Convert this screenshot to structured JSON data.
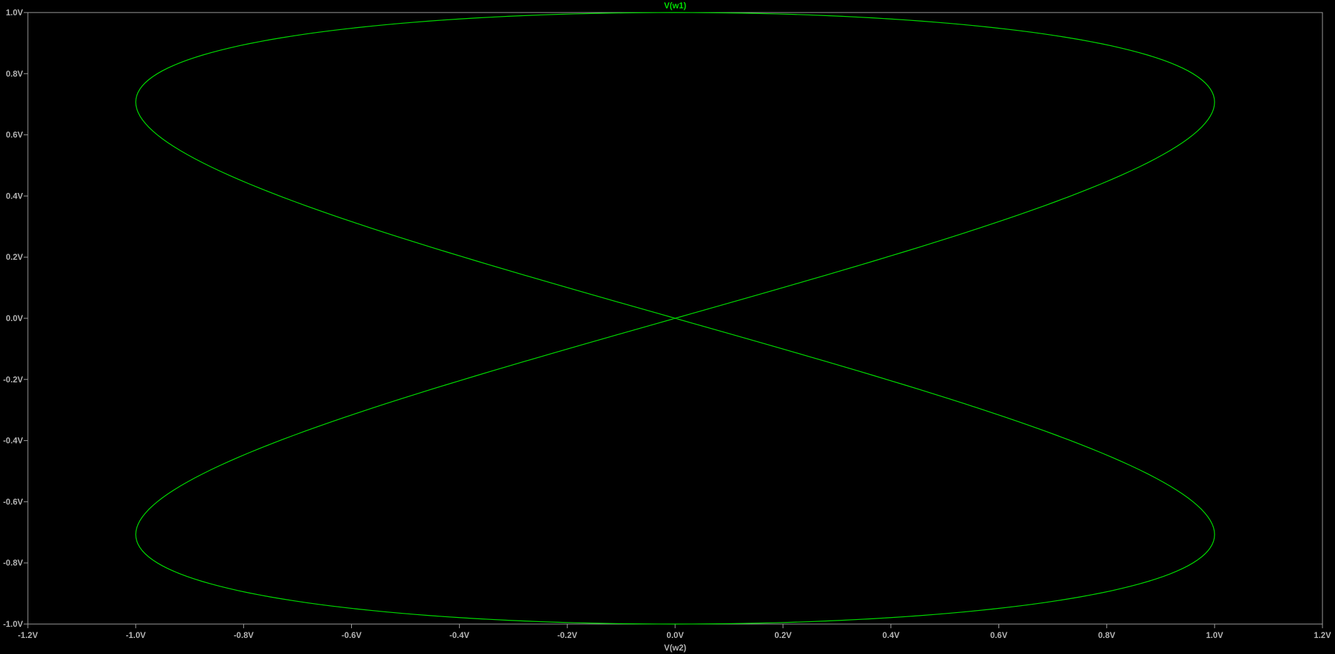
{
  "chart_data": {
    "type": "line",
    "title": "V(w1)",
    "xlabel": "V(w2)",
    "ylabel": "",
    "xlim": [
      -1.2,
      1.2
    ],
    "ylim": [
      -1.0,
      1.0
    ],
    "grid": false,
    "x_ticks": [
      -1.2,
      -1.0,
      -0.8,
      -0.6,
      -0.4,
      -0.2,
      0.0,
      0.2,
      0.4,
      0.6,
      0.8,
      1.0,
      1.2
    ],
    "x_tick_labels": [
      "-1.2V",
      "-1.0V",
      "-0.8V",
      "-0.6V",
      "-0.4V",
      "-0.2V",
      "0.0V",
      "0.2V",
      "0.4V",
      "0.6V",
      "0.8V",
      "1.0V",
      "1.2V"
    ],
    "y_ticks": [
      1.0,
      0.8,
      0.6,
      0.4,
      0.2,
      0.0,
      -0.2,
      -0.4,
      -0.6,
      -0.8,
      -1.0
    ],
    "y_tick_labels": [
      "1.0V",
      "0.8V",
      "0.6V",
      "0.4V",
      "0.2V",
      "0.0V",
      "-0.2V",
      "-0.4V",
      "-0.6V",
      "-0.8V",
      "-1.0V"
    ],
    "series": [
      {
        "x_expression": "sin(2t)",
        "y_expression": "sin(t)",
        "t_range": [
          0,
          6.283185307
        ],
        "x_amplitude": 1.0,
        "y_amplitude": 1.0,
        "samples": 400
      }
    ],
    "colors": {
      "background": "#000000",
      "axis": "#a0a0a0",
      "tick_label": "#b4b4b4",
      "trace": "#00e000",
      "title": "#00e000",
      "xlabel": "#b4b4b4"
    }
  }
}
